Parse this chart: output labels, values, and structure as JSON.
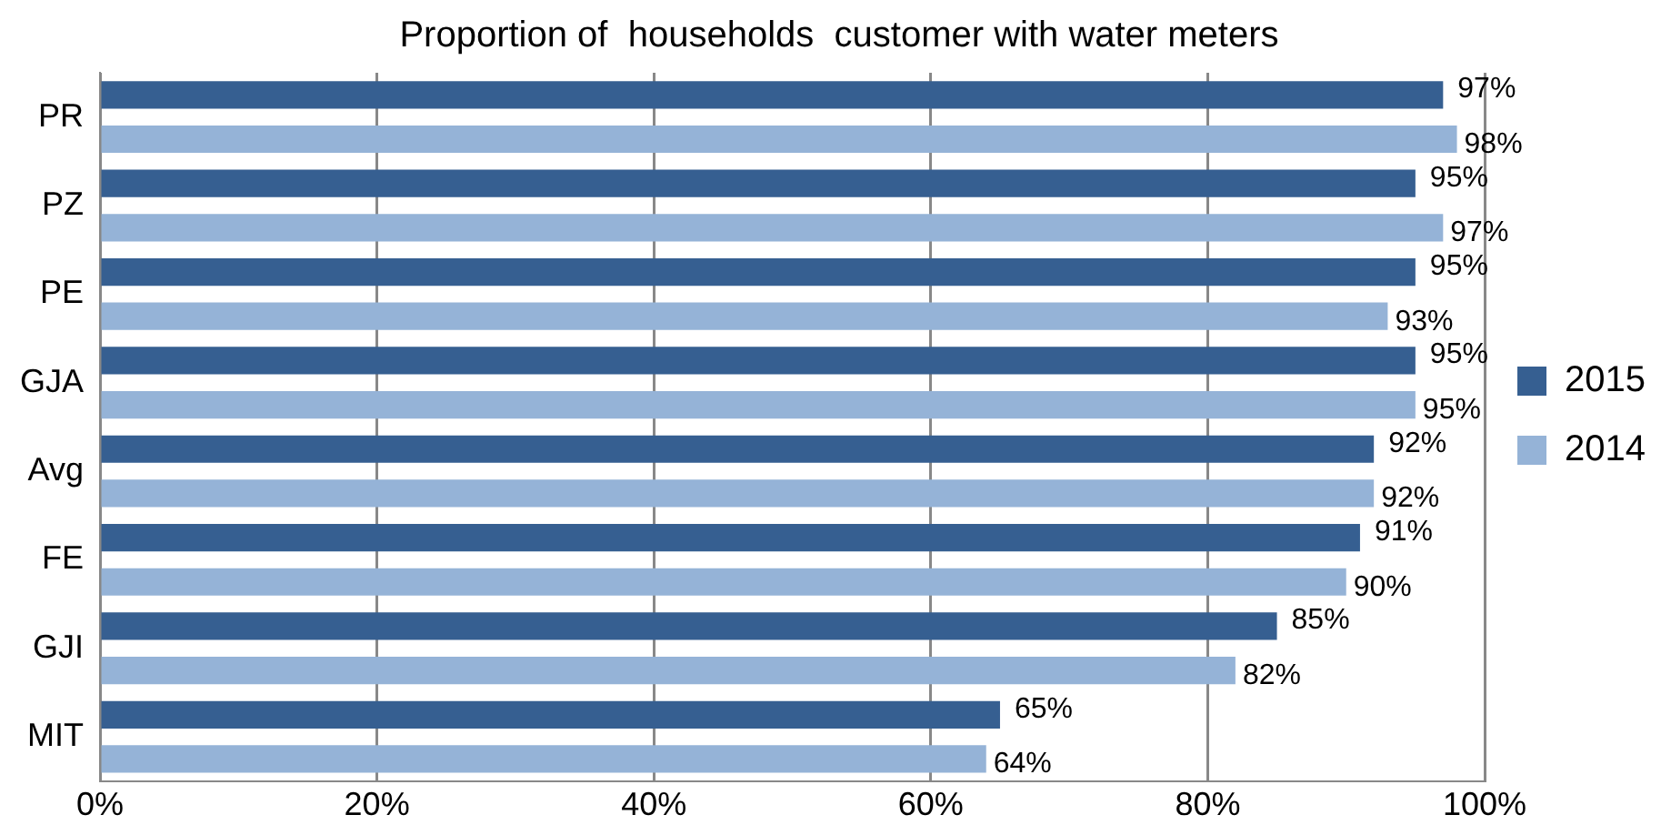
{
  "chart_data": {
    "type": "bar",
    "orientation": "horizontal",
    "title": "Proportion of  households  customer with water meters",
    "categories": [
      "PR",
      "PZ",
      "PE",
      "GJA",
      "Avg",
      "FE",
      "GJI",
      "MIT"
    ],
    "series": [
      {
        "name": "2015",
        "color": "#365f91",
        "values": [
          97,
          95,
          95,
          95,
          92,
          91,
          85,
          65
        ],
        "value_labels": [
          "97%",
          "95%",
          "95%",
          "95%",
          "92%",
          "91%",
          "85%",
          "65%"
        ]
      },
      {
        "name": "2014",
        "color": "#95b3d7",
        "values": [
          98,
          97,
          93,
          95,
          92,
          90,
          82,
          64
        ],
        "value_labels": [
          "98%",
          "97%",
          "93%",
          "95%",
          "92%",
          "90%",
          "82%",
          "64%"
        ]
      }
    ],
    "xlim": [
      0,
      100
    ],
    "xticks": [
      {
        "value": 0,
        "label": "0%"
      },
      {
        "value": 20,
        "label": "20%"
      },
      {
        "value": 40,
        "label": "40%"
      },
      {
        "value": 60,
        "label": "60%"
      },
      {
        "value": 80,
        "label": "80%"
      },
      {
        "value": 100,
        "label": "100%"
      }
    ],
    "grid": "x",
    "legend": "right"
  }
}
